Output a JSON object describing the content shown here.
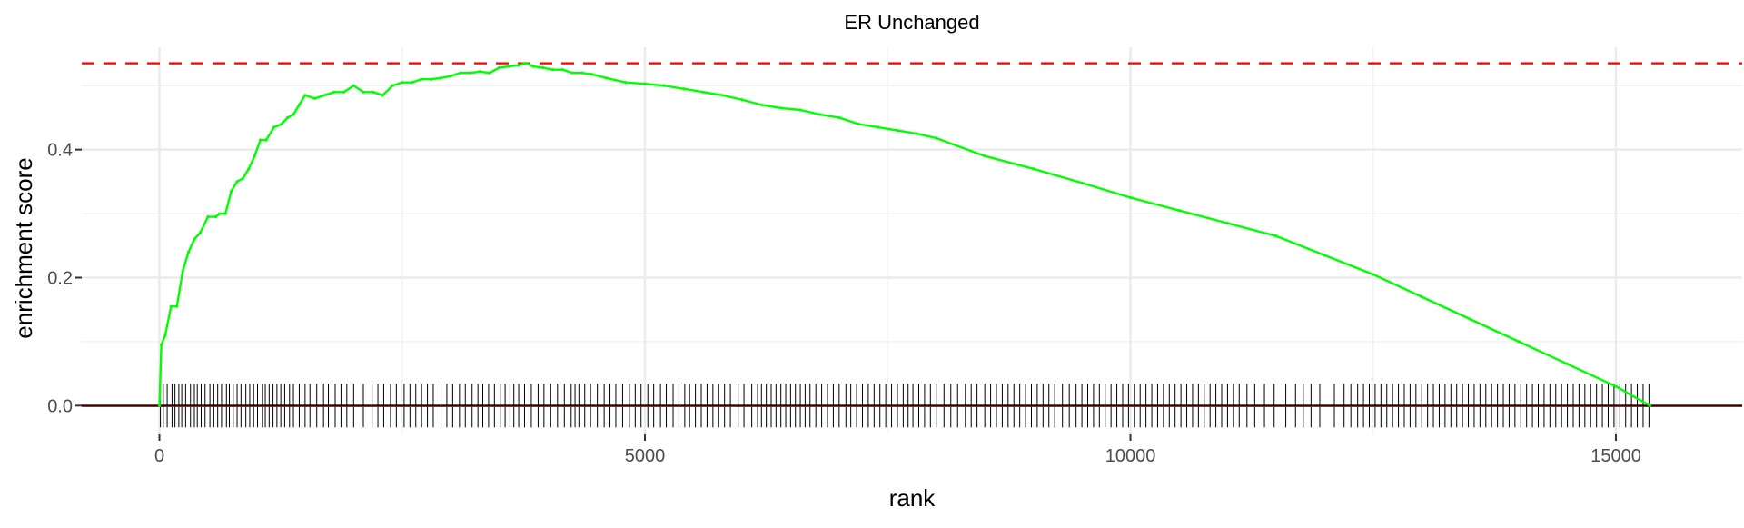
{
  "chart_data": {
    "type": "line",
    "title": "ER Unchanged",
    "xlabel": "rank",
    "ylabel": "enrichment score",
    "xlim": [
      -800,
      16300
    ],
    "ylim": [
      -0.045,
      0.56
    ],
    "x_ticks": [
      0,
      5000,
      10000,
      15000
    ],
    "x_tick_labels": [
      "0",
      "5000",
      "10000",
      "15000"
    ],
    "y_ticks": [
      0.0,
      0.2,
      0.4
    ],
    "y_tick_labels": [
      "0.0",
      "0.2",
      "0.4"
    ],
    "grid": true,
    "legend": "none",
    "max_es": 0.535,
    "series": [
      {
        "color": "#00ff00",
        "x": [
          0,
          20,
          60,
          120,
          180,
          240,
          300,
          360,
          420,
          500,
          580,
          620,
          680,
          740,
          800,
          860,
          920,
          980,
          1040,
          1100,
          1180,
          1260,
          1320,
          1380,
          1440,
          1500,
          1600,
          1700,
          1800,
          1900,
          2000,
          2100,
          2200,
          2300,
          2400,
          2500,
          2600,
          2700,
          2800,
          2900,
          3000,
          3100,
          3200,
          3300,
          3400,
          3500,
          3600,
          3700,
          3780,
          3850,
          3950,
          4050,
          4150,
          4250,
          4350,
          4450,
          4600,
          4800,
          5000,
          5200,
          5400,
          5600,
          5800,
          6000,
          6200,
          6400,
          6600,
          6800,
          7000,
          7200,
          7400,
          7600,
          7800,
          8000,
          8500,
          9000,
          9500,
          10000,
          10500,
          11000,
          11500,
          12000,
          12500,
          13000,
          13500,
          14000,
          14500,
          15000,
          15350
        ],
        "y": [
          0.0,
          0.095,
          0.11,
          0.155,
          0.155,
          0.21,
          0.24,
          0.26,
          0.27,
          0.295,
          0.295,
          0.3,
          0.3,
          0.335,
          0.35,
          0.355,
          0.37,
          0.39,
          0.415,
          0.415,
          0.435,
          0.44,
          0.45,
          0.455,
          0.47,
          0.485,
          0.48,
          0.485,
          0.49,
          0.49,
          0.5,
          0.49,
          0.49,
          0.485,
          0.5,
          0.505,
          0.505,
          0.51,
          0.51,
          0.512,
          0.515,
          0.52,
          0.52,
          0.522,
          0.52,
          0.528,
          0.53,
          0.532,
          0.535,
          0.53,
          0.528,
          0.525,
          0.525,
          0.52,
          0.52,
          0.518,
          0.512,
          0.505,
          0.503,
          0.5,
          0.495,
          0.49,
          0.485,
          0.478,
          0.47,
          0.465,
          0.462,
          0.455,
          0.45,
          0.44,
          0.435,
          0.43,
          0.425,
          0.418,
          0.39,
          0.37,
          0.348,
          0.325,
          0.305,
          0.285,
          0.265,
          0.235,
          0.205,
          0.17,
          0.135,
          0.1,
          0.065,
          0.03,
          0.0
        ]
      }
    ],
    "hit_ranks": [
      10,
      40,
      80,
      130,
      160,
      200,
      230,
      270,
      320,
      360,
      390,
      430,
      470,
      520,
      560,
      600,
      640,
      690,
      720,
      760,
      800,
      840,
      890,
      930,
      970,
      1010,
      1060,
      1090,
      1130,
      1170,
      1210,
      1250,
      1290,
      1340,
      1380,
      1440,
      1500,
      1550,
      1620,
      1690,
      1740,
      1810,
      1870,
      1930,
      2000,
      2100,
      2190,
      2250,
      2310,
      2380,
      2440,
      2520,
      2580,
      2640,
      2700,
      2760,
      2820,
      2900,
      2960,
      3020,
      3090,
      3150,
      3220,
      3280,
      3330,
      3390,
      3450,
      3510,
      3560,
      3610,
      3650,
      3700,
      3760,
      3830,
      3900,
      3960,
      4030,
      4100,
      4170,
      4240,
      4280,
      4320,
      4380,
      4440,
      4510,
      4580,
      4640,
      4700,
      4770,
      4840,
      4900,
      4960,
      5030,
      5090,
      5160,
      5220,
      5290,
      5350,
      5410,
      5460,
      5520,
      5580,
      5640,
      5700,
      5760,
      5820,
      5880,
      5960,
      6020,
      6100,
      6160,
      6200,
      6250,
      6300,
      6350,
      6400,
      6450,
      6500,
      6550,
      6600,
      6650,
      6700,
      6760,
      6820,
      6880,
      6940,
      7000,
      7070,
      7120,
      7180,
      7240,
      7300,
      7360,
      7420,
      7480,
      7540,
      7600,
      7660,
      7710,
      7760,
      7820,
      7880,
      7940,
      8000,
      8080,
      8150,
      8220,
      8300,
      8360,
      8420,
      8500,
      8560,
      8620,
      8680,
      8740,
      8800,
      8860,
      8920,
      8980,
      9040,
      9100,
      9160,
      9220,
      9300,
      9370,
      9440,
      9500,
      9560,
      9620,
      9680,
      9740,
      9800,
      9860,
      9920,
      9980,
      10040,
      10100,
      10160,
      10220,
      10280,
      10340,
      10400,
      10460,
      10520,
      10580,
      10640,
      10700,
      10760,
      10820,
      10880,
      10940,
      11000,
      11060,
      11120,
      11200,
      11280,
      11380,
      11480,
      11600,
      11700,
      11780,
      11860,
      11950,
      12100,
      12200,
      12270,
      12340,
      12400,
      12460,
      12520,
      12580,
      12640,
      12700,
      12760,
      12820,
      12880,
      12940,
      13000,
      13060,
      13120,
      13180,
      13240,
      13300,
      13360,
      13420,
      13480,
      13540,
      13600,
      13660,
      13720,
      13780,
      13840,
      13900,
      13960,
      14020,
      14080,
      14140,
      14200,
      14260,
      14320,
      14380,
      14440,
      14500,
      14560,
      14620,
      14680,
      14740,
      14800,
      14860,
      14920,
      14980,
      15040,
      15100,
      15160,
      15220,
      15280,
      15340
    ]
  }
}
